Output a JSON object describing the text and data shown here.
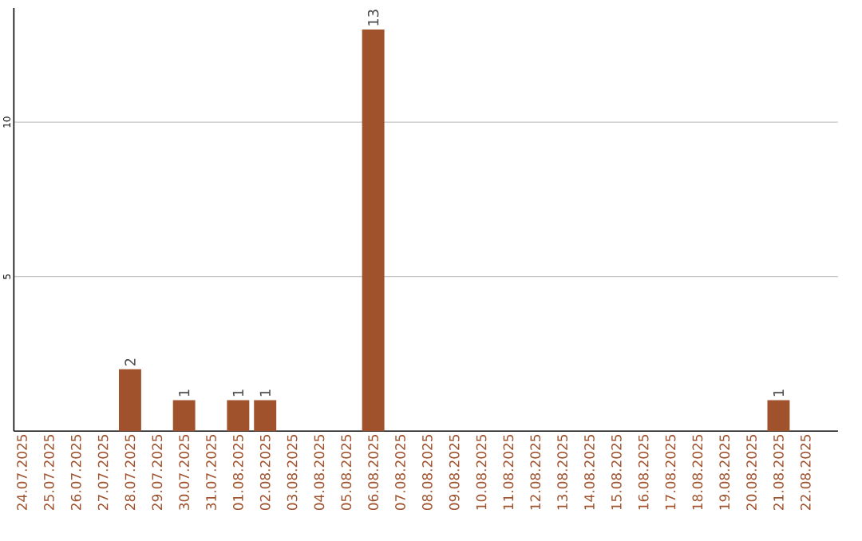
{
  "chart_data": {
    "type": "bar",
    "categories": [
      "24.07.2025",
      "25.07.2025",
      "26.07.2025",
      "27.07.2025",
      "28.07.2025",
      "29.07.2025",
      "30.07.2025",
      "31.07.2025",
      "01.08.2025",
      "02.08.2025",
      "03.08.2025",
      "04.08.2025",
      "05.08.2025",
      "06.08.2025",
      "07.08.2025",
      "08.08.2025",
      "09.08.2025",
      "10.08.2025",
      "11.08.2025",
      "12.08.2025",
      "13.08.2025",
      "14.08.2025",
      "15.08.2025",
      "16.08.2025",
      "17.08.2025",
      "18.08.2025",
      "19.08.2025",
      "20.08.2025",
      "21.08.2025",
      "22.08.2025"
    ],
    "values": [
      0,
      0,
      0,
      0,
      2,
      0,
      1,
      0,
      1,
      1,
      0,
      0,
      0,
      13,
      0,
      0,
      0,
      0,
      0,
      0,
      0,
      0,
      0,
      0,
      0,
      0,
      0,
      0,
      1,
      0
    ],
    "value_labels": [
      null,
      null,
      null,
      null,
      "2",
      null,
      "1",
      null,
      "1",
      "1",
      null,
      null,
      null,
      "13",
      null,
      null,
      null,
      null,
      null,
      null,
      null,
      null,
      null,
      null,
      null,
      null,
      null,
      null,
      "1",
      null
    ],
    "color": "#a0522d",
    "ylim": [
      0,
      13.7
    ],
    "yticks": [
      5,
      10
    ],
    "grid": "y"
  }
}
